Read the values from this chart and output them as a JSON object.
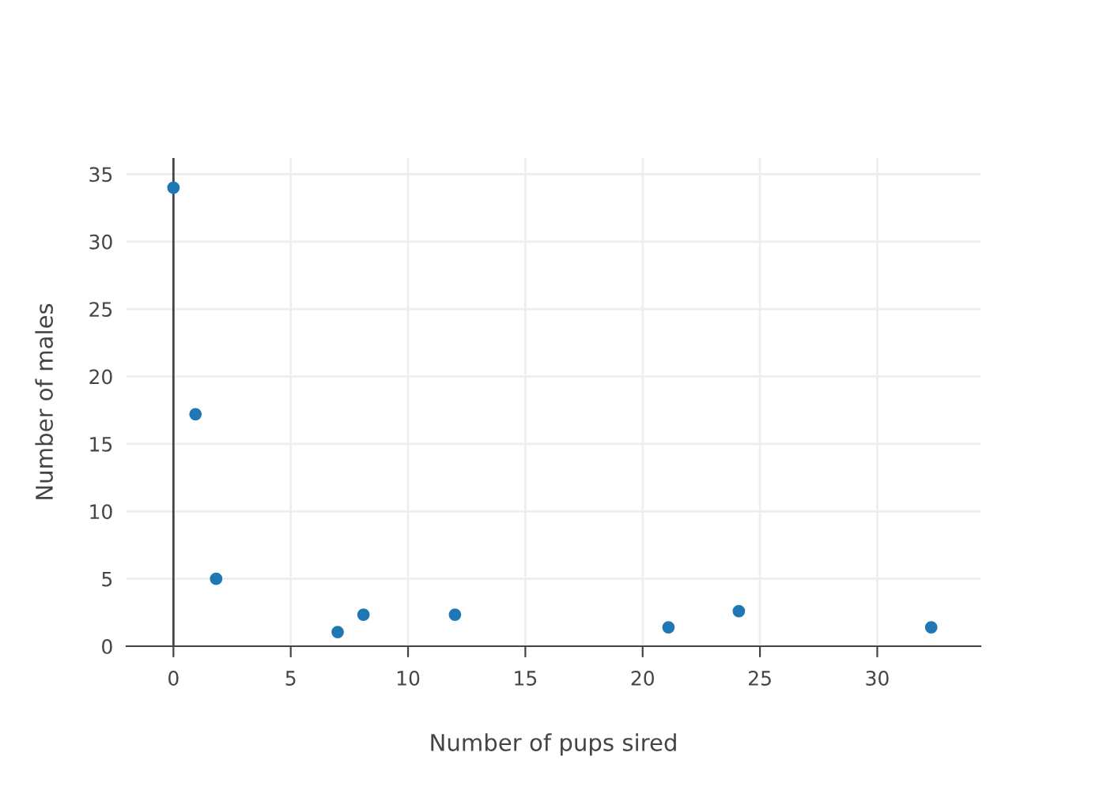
{
  "chart_data": {
    "type": "scatter",
    "xlabel": "Number of pups sired",
    "ylabel": "Number of males",
    "x": [
      0,
      0.94,
      1.82,
      7.0,
      8.1,
      12.0,
      21.1,
      24.1,
      32.3
    ],
    "series": [
      {
        "color": "#1f77b4",
        "values": [
          34,
          17.2,
          5.0,
          1.05,
          2.34,
          2.34,
          1.4,
          2.6,
          1.4
        ]
      }
    ],
    "xlim": [
      -2,
      34.4
    ],
    "ylim": [
      0,
      36.2
    ],
    "xticks": [
      0,
      5,
      10,
      15,
      20,
      25,
      30
    ],
    "yticks": [
      0,
      5,
      10,
      15,
      20,
      25,
      30,
      35
    ],
    "grid": true,
    "marker": "circle"
  }
}
